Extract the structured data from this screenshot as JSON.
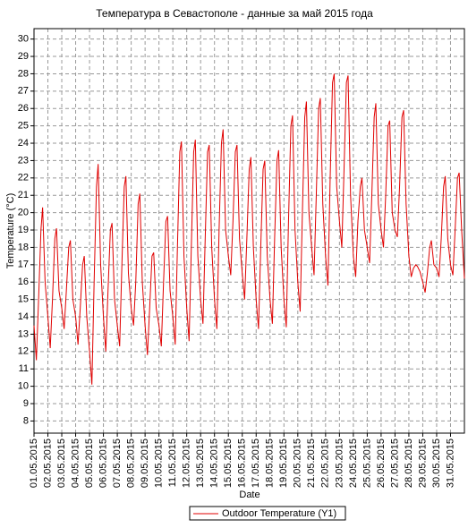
{
  "chart_data": {
    "type": "line",
    "title": "Температура в Севастополе - данные за май 2015 года",
    "xlabel": "Date",
    "ylabel": "Temperature (°C)",
    "x": [
      0,
      0.17,
      0.33,
      0.5,
      0.62,
      0.8,
      1,
      1.17,
      1.33,
      1.5,
      1.62,
      1.8,
      2,
      2.17,
      2.33,
      2.5,
      2.62,
      2.8,
      3,
      3.17,
      3.33,
      3.5,
      3.62,
      3.8,
      4,
      4.17,
      4.33,
      4.5,
      4.62,
      4.8,
      5,
      5.17,
      5.33,
      5.5,
      5.62,
      5.8,
      6,
      6.17,
      6.33,
      6.5,
      6.62,
      6.8,
      7,
      7.17,
      7.33,
      7.5,
      7.62,
      7.8,
      8,
      8.17,
      8.33,
      8.5,
      8.62,
      8.8,
      9,
      9.17,
      9.33,
      9.5,
      9.62,
      9.8,
      10,
      10.17,
      10.33,
      10.5,
      10.62,
      10.8,
      11,
      11.17,
      11.33,
      11.5,
      11.62,
      11.8,
      12,
      12.17,
      12.33,
      12.5,
      12.62,
      12.8,
      13,
      13.17,
      13.33,
      13.5,
      13.62,
      13.8,
      14,
      14.17,
      14.33,
      14.5,
      14.62,
      14.8,
      15,
      15.17,
      15.33,
      15.5,
      15.62,
      15.8,
      16,
      16.17,
      16.33,
      16.5,
      16.62,
      16.8,
      17,
      17.17,
      17.33,
      17.5,
      17.62,
      17.8,
      18,
      18.17,
      18.33,
      18.5,
      18.62,
      18.8,
      19,
      19.17,
      19.33,
      19.5,
      19.62,
      19.8,
      20,
      20.17,
      20.33,
      20.5,
      20.62,
      20.8,
      21,
      21.17,
      21.33,
      21.5,
      21.62,
      21.8,
      22,
      22.17,
      22.33,
      22.5,
      22.62,
      22.8,
      23,
      23.17,
      23.33,
      23.5,
      23.62,
      23.8,
      24,
      24.17,
      24.33,
      24.5,
      24.62,
      24.8,
      25,
      25.17,
      25.33,
      25.5,
      25.62,
      25.8,
      26,
      26.17,
      26.33,
      26.5,
      26.62,
      26.8,
      27,
      27.17,
      27.33,
      27.5,
      27.62,
      27.8,
      28,
      28.17,
      28.33,
      28.5,
      28.62,
      28.8,
      29,
      29.17,
      29.33,
      29.5,
      29.62,
      29.8,
      30,
      30.17,
      30.33,
      30.5,
      30.62,
      30.8,
      31
    ],
    "series": [
      {
        "name": "Outdoor Temperature (Y1)",
        "color": "#e00000",
        "values": [
          13.5,
          11.5,
          15,
          19,
          20.3,
          16,
          14,
          12.2,
          15,
          18.5,
          19.1,
          15.5,
          14.5,
          13.3,
          15.5,
          18,
          18.4,
          15,
          14,
          12.4,
          14.5,
          17,
          17.5,
          14,
          12,
          10.1,
          16,
          21.5,
          22.8,
          17,
          14,
          12,
          15.5,
          19,
          19.4,
          15,
          13.5,
          12.3,
          17,
          21.5,
          22.1,
          16.5,
          14.5,
          13.5,
          16,
          20.5,
          21.1,
          16,
          13.5,
          11.8,
          14.5,
          17.5,
          17.7,
          14.5,
          13.5,
          12.3,
          16,
          19.5,
          19.8,
          15.5,
          14,
          12.4,
          18,
          23.5,
          24.1,
          17.5,
          14.5,
          12.6,
          18,
          23.5,
          24.2,
          17.5,
          15,
          13.6,
          18.5,
          23.5,
          23.9,
          18,
          15,
          13.3,
          19,
          24,
          24.8,
          19,
          17.5,
          16.4,
          19.5,
          23.5,
          23.9,
          18.5,
          16.5,
          15,
          18.5,
          22.5,
          23.2,
          18,
          15,
          13.3,
          18,
          22.5,
          23,
          17.5,
          15,
          13.6,
          18.5,
          23,
          23.6,
          18,
          15,
          13.4,
          19.5,
          25,
          25.6,
          19,
          16,
          14.3,
          20,
          25.5,
          26.4,
          20,
          18,
          16.4,
          21,
          26,
          26.6,
          20.5,
          17.5,
          15.8,
          22,
          27.5,
          28,
          21.5,
          19.5,
          18,
          22.5,
          27.5,
          27.9,
          21,
          17.5,
          16.3,
          19.5,
          21.5,
          22,
          19,
          18,
          17.1,
          21,
          25.5,
          26.3,
          20.5,
          19,
          18,
          21,
          25,
          25.3,
          20,
          19,
          18.6,
          21.5,
          25.5,
          25.9,
          20.5,
          17.5,
          16.3,
          16.8,
          17,
          16.9,
          16.6,
          16,
          15.4,
          16.5,
          18,
          18.4,
          17,
          16.8,
          16.3,
          18.5,
          21.5,
          22.1,
          18.5,
          17,
          16.4,
          19,
          22,
          22.3,
          19,
          16.2
        ]
      }
    ],
    "xlim": [
      0,
      31
    ],
    "xticks": [
      {
        "value": 0,
        "label": "01.05.2015"
      },
      {
        "value": 1,
        "label": "02.05.2015"
      },
      {
        "value": 2,
        "label": "03.05.2015"
      },
      {
        "value": 3,
        "label": "04.05.2015"
      },
      {
        "value": 4,
        "label": "05.05.2015"
      },
      {
        "value": 5,
        "label": "06.05.2015"
      },
      {
        "value": 6,
        "label": "07.05.2015"
      },
      {
        "value": 7,
        "label": "08.05.2015"
      },
      {
        "value": 8,
        "label": "09.05.2015"
      },
      {
        "value": 9,
        "label": "10.05.2015"
      },
      {
        "value": 10,
        "label": "11.05.2015"
      },
      {
        "value": 11,
        "label": "12.05.2015"
      },
      {
        "value": 12,
        "label": "13.05.2015"
      },
      {
        "value": 13,
        "label": "14.05.2015"
      },
      {
        "value": 14,
        "label": "15.05.2015"
      },
      {
        "value": 15,
        "label": "16.05.2015"
      },
      {
        "value": 16,
        "label": "17.05.2015"
      },
      {
        "value": 17,
        "label": "18.05.2015"
      },
      {
        "value": 18,
        "label": "19.05.2015"
      },
      {
        "value": 19,
        "label": "20.05.2015"
      },
      {
        "value": 20,
        "label": "21.05.2015"
      },
      {
        "value": 21,
        "label": "22.05.2015"
      },
      {
        "value": 22,
        "label": "23.05.2015"
      },
      {
        "value": 23,
        "label": "24.05.2015"
      },
      {
        "value": 24,
        "label": "25.05.2015"
      },
      {
        "value": 25,
        "label": "26.05.2015"
      },
      {
        "value": 26,
        "label": "27.05.2015"
      },
      {
        "value": 27,
        "label": "28.05.2015"
      },
      {
        "value": 28,
        "label": "29.05.2015"
      },
      {
        "value": 29,
        "label": "30.05.2015"
      },
      {
        "value": 30,
        "label": "31.05.2015"
      }
    ],
    "ylim": [
      7.3,
      30.6
    ],
    "yticks": [
      8,
      9,
      10,
      11,
      12,
      13,
      14,
      15,
      16,
      17,
      18,
      19,
      20,
      21,
      22,
      23,
      24,
      25,
      26,
      27,
      28,
      29,
      30
    ],
    "grid": true
  }
}
